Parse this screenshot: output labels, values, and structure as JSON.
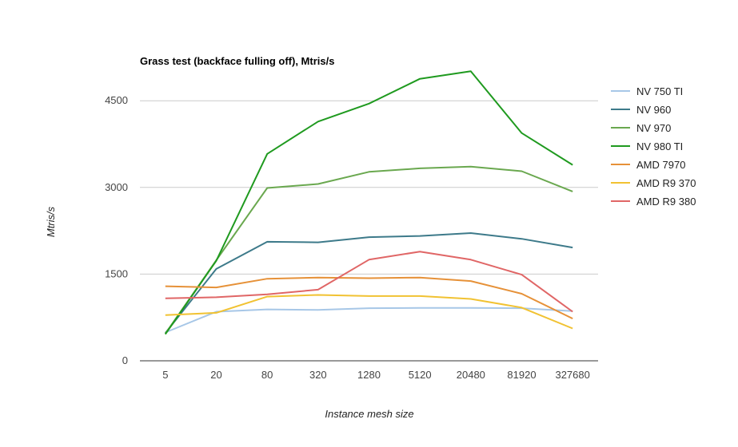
{
  "chart_data": {
    "type": "line",
    "title": "Grass test (backface fulling off), Mtris/s",
    "xlabel": "Instance mesh size",
    "ylabel": "Mtris/s",
    "categories": [
      "5",
      "20",
      "80",
      "320",
      "1280",
      "5120",
      "20480",
      "81920",
      "327680"
    ],
    "ylim": [
      0,
      5000
    ],
    "yticks": [
      0,
      1500,
      3000,
      4500
    ],
    "grid": true,
    "legend_position": "right",
    "series": [
      {
        "name": "NV 750 TI",
        "color": "#a7c7e7",
        "values": [
          490,
          850,
          890,
          880,
          910,
          915,
          915,
          910,
          860
        ]
      },
      {
        "name": "NV 960",
        "color": "#3d7a8a",
        "values": [
          480,
          1590,
          2060,
          2050,
          2140,
          2160,
          2210,
          2110,
          1960
        ]
      },
      {
        "name": "NV 970",
        "color": "#6aa84f",
        "values": [
          470,
          1740,
          2990,
          3060,
          3270,
          3330,
          3360,
          3280,
          2930
        ]
      },
      {
        "name": "NV 980 TI",
        "color": "#1f9a1f",
        "values": [
          460,
          1730,
          3580,
          4140,
          4450,
          4880,
          5010,
          3940,
          3390
        ]
      },
      {
        "name": "AMD 7970",
        "color": "#e69138",
        "values": [
          1290,
          1270,
          1420,
          1440,
          1430,
          1440,
          1380,
          1160,
          730
        ]
      },
      {
        "name": "AMD R9 370",
        "color": "#f1c232",
        "values": [
          790,
          830,
          1110,
          1140,
          1120,
          1120,
          1070,
          920,
          560
        ]
      },
      {
        "name": "AMD R9 380",
        "color": "#e06666",
        "values": [
          1080,
          1100,
          1150,
          1230,
          1750,
          1890,
          1750,
          1490,
          850
        ]
      }
    ]
  }
}
